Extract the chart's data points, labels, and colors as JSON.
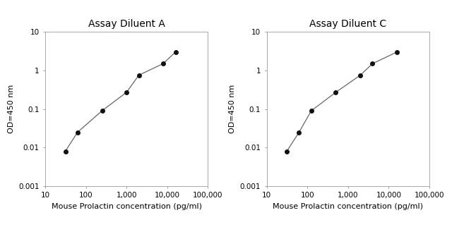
{
  "panel_A": {
    "title": "Assay Diluent A",
    "x": [
      31.25,
      62.5,
      250,
      1000,
      2000,
      8000,
      16000
    ],
    "y": [
      0.008,
      0.025,
      0.09,
      0.27,
      0.75,
      1.5,
      3.0
    ],
    "xlabel": "Mouse Prolactin concentration (pg/ml)",
    "ylabel": "OD=450 nm",
    "xlim": [
      10,
      100000
    ],
    "ylim": [
      0.001,
      10
    ]
  },
  "panel_C": {
    "title": "Assay Diluent C",
    "x": [
      31.25,
      62.5,
      125,
      500,
      2000,
      4000,
      16000
    ],
    "y": [
      0.008,
      0.025,
      0.09,
      0.27,
      0.75,
      1.5,
      3.0
    ],
    "xlabel": "Mouse Prolactin concentration (pg/ml)",
    "ylabel": "OD=450 nm",
    "xlim": [
      10,
      100000
    ],
    "ylim": [
      0.001,
      10
    ]
  },
  "line_color": "#666666",
  "marker_color": "#111111",
  "marker_size": 4,
  "line_width": 0.9,
  "bg_color": "#ffffff",
  "title_fontsize": 10,
  "label_fontsize": 8,
  "tick_fontsize": 7.5,
  "xticks": [
    10,
    100,
    1000,
    10000,
    100000
  ],
  "xticklabels": [
    "10",
    "100",
    "1,000",
    "10,000",
    "100,000"
  ],
  "yticks": [
    0.001,
    0.01,
    0.1,
    1,
    10
  ],
  "yticklabels": [
    "0.001",
    "0.01",
    "0.1",
    "1",
    "10"
  ]
}
